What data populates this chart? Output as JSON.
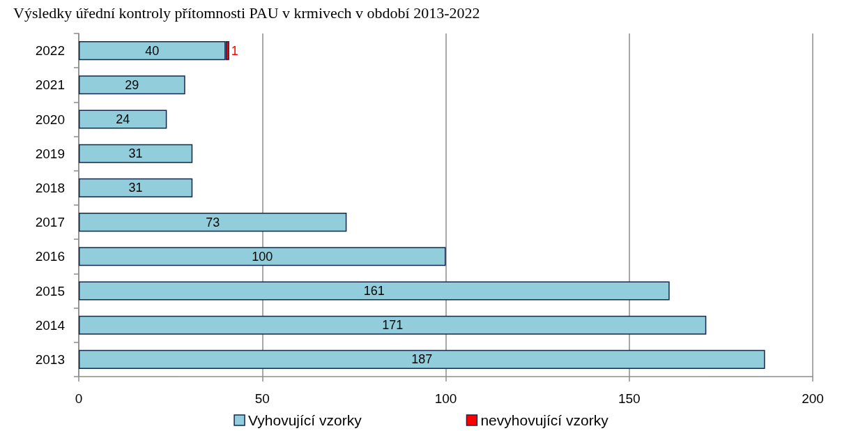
{
  "chart_data": {
    "type": "bar",
    "title": "Výsledky úřední kontroly přítomnosti PAU v krmivech v období 2013-2022",
    "orientation": "horizontal",
    "stacked": true,
    "categories": [
      "2022",
      "2021",
      "2020",
      "2019",
      "2018",
      "2017",
      "2016",
      "2015",
      "2014",
      "2013"
    ],
    "series": [
      {
        "name": "Vyhovující vzorky",
        "color": "#92cddc",
        "values": [
          40,
          29,
          24,
          31,
          31,
          73,
          100,
          161,
          171,
          187
        ]
      },
      {
        "name": "nevyhovující vzorky",
        "color": "#ff0000",
        "values": [
          1,
          null,
          null,
          null,
          null,
          null,
          null,
          null,
          null,
          null
        ]
      }
    ],
    "xlim": [
      0,
      200
    ],
    "xticks": [
      0,
      50,
      100,
      150,
      200
    ],
    "grid": "x",
    "legend": "bottom",
    "data_labels": true
  }
}
